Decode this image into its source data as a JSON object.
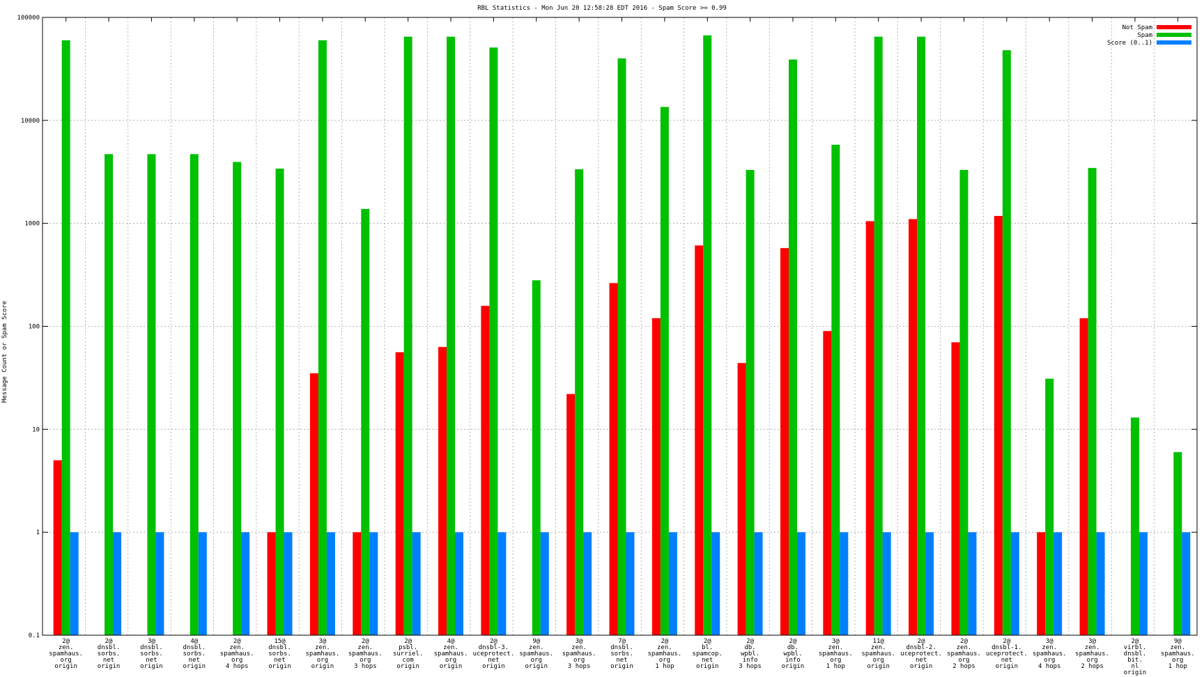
{
  "chart_data": {
    "type": "bar",
    "title": "RBL Statistics - Mon Jun 20 12:58:28 EDT 2016 - Spam Score >= 0.99",
    "xlabel": "",
    "ylabel": "Message Count or Spam Score",
    "yscale": "log",
    "ylim": [
      0.1,
      100000
    ],
    "yticks": [
      "0.1",
      "1",
      "10",
      "100",
      "1000",
      "10000",
      "100000"
    ],
    "grid": true,
    "legend_position": "top-right",
    "categories": [
      [
        "2@",
        "zen.",
        "spamhaus.",
        "org",
        "origin"
      ],
      [
        "2@",
        "dnsbl.",
        "sorbs.",
        "net",
        "origin"
      ],
      [
        "3@",
        "dnsbl.",
        "sorbs.",
        "net",
        "origin"
      ],
      [
        "4@",
        "dnsbl.",
        "sorbs.",
        "net",
        "origin"
      ],
      [
        "2@",
        "zen.",
        "spamhaus.",
        "org",
        "4 hops"
      ],
      [
        "15@",
        "dnsbl.",
        "sorbs.",
        "net",
        "origin"
      ],
      [
        "3@",
        "zen.",
        "spamhaus.",
        "org",
        "origin"
      ],
      [
        "2@",
        "zen.",
        "spamhaus.",
        "org",
        "3 hops"
      ],
      [
        "2@",
        "psbl.",
        "surriel.",
        "com",
        "origin"
      ],
      [
        "4@",
        "zen.",
        "spamhaus.",
        "org",
        "origin"
      ],
      [
        "2@",
        "dnsbl-3.",
        "uceprotect.",
        "net",
        "origin"
      ],
      [
        "9@",
        "zen.",
        "spamhaus.",
        "org",
        "origin"
      ],
      [
        "3@",
        "zen.",
        "spamhaus.",
        "org",
        "3 hops"
      ],
      [
        "7@",
        "dnsbl.",
        "sorbs.",
        "net",
        "origin"
      ],
      [
        "2@",
        "zen.",
        "spamhaus.",
        "org",
        "1 hop"
      ],
      [
        "2@",
        "bl.",
        "spamcop.",
        "net",
        "origin"
      ],
      [
        "2@",
        "db.",
        "wpbl.",
        "info",
        "3 hops"
      ],
      [
        "2@",
        "db.",
        "wpbl.",
        "info",
        "origin"
      ],
      [
        "3@",
        "zen.",
        "spamhaus.",
        "org",
        "1 hop"
      ],
      [
        "11@",
        "zen.",
        "spamhaus.",
        "org",
        "origin"
      ],
      [
        "2@",
        "dnsbl-2.",
        "uceprotect.",
        "net",
        "origin"
      ],
      [
        "2@",
        "zen.",
        "spamhaus.",
        "org",
        "2 hops"
      ],
      [
        "2@",
        "dnsbl-1.",
        "uceprotect.",
        "net",
        "origin"
      ],
      [
        "3@",
        "zen.",
        "spamhaus.",
        "org",
        "4 hops"
      ],
      [
        "3@",
        "zen.",
        "spamhaus.",
        "org",
        "2 hops"
      ],
      [
        "2@",
        "virbl.",
        "dnsbl.",
        "bit.",
        "nl",
        "origin"
      ],
      [
        "9@",
        "zen.",
        "spamhaus.",
        "org",
        "1 hop"
      ]
    ],
    "series": [
      {
        "name": "Not Spam",
        "color": "#ff0000",
        "values": [
          5,
          null,
          null,
          null,
          null,
          1,
          35,
          1,
          56,
          63,
          158,
          null,
          22,
          263,
          120,
          610,
          44,
          575,
          90,
          1050,
          1100,
          70,
          1180,
          1,
          120,
          null,
          null
        ]
      },
      {
        "name": "Spam",
        "color": "#00c000",
        "values": [
          60000,
          4700,
          4700,
          4700,
          3950,
          3400,
          60000,
          1380,
          65000,
          65000,
          51000,
          280,
          3350,
          40000,
          13500,
          67000,
          3300,
          39000,
          5800,
          65000,
          65000,
          3300,
          48000,
          31,
          3450,
          13,
          6
        ]
      },
      {
        "name": "Score (0..1)",
        "color": "#0080ff",
        "values": [
          1,
          1,
          1,
          1,
          1,
          1,
          1,
          1,
          1,
          1,
          1,
          1,
          1,
          1,
          1,
          1,
          1,
          1,
          1,
          1,
          1,
          1,
          1,
          1,
          1,
          1,
          1
        ]
      }
    ]
  }
}
